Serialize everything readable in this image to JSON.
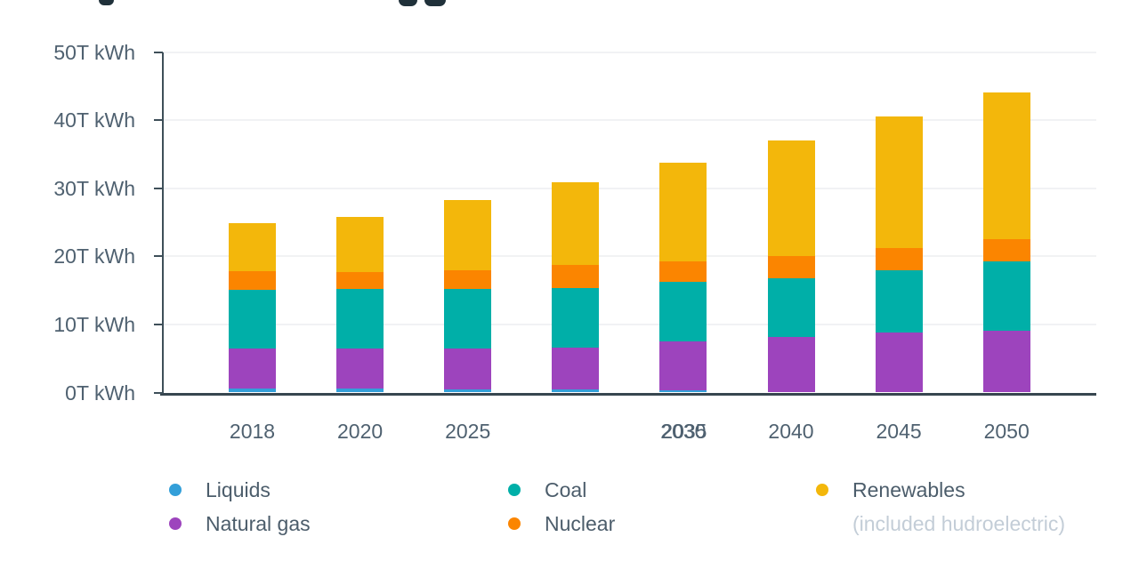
{
  "chart_data": {
    "type": "bar",
    "stacked": true,
    "unit": "T kWh",
    "categories": [
      "2018",
      "2020",
      "2025",
      "2030",
      "2035",
      "2040",
      "2045",
      "2050"
    ],
    "x_tick_labels": [
      {
        "text": "2018"
      },
      {
        "text": "2020"
      },
      {
        "text": "2025"
      },
      {
        "text": ""
      },
      {
        "text": "2030",
        "overlapped_text": "2035"
      },
      {
        "text": "2040"
      },
      {
        "text": "2045"
      },
      {
        "text": "2050"
      }
    ],
    "y_tick_labels": [
      "0T kWh",
      "10T kWh",
      "20T kWh",
      "30T kWh",
      "40T kWh",
      "50T kWh"
    ],
    "ylim": [
      0,
      50
    ],
    "grid": true,
    "legend_position": "bottom",
    "series": [
      {
        "name": "Liquids",
        "color": "#339FD9",
        "values": [
          0.6,
          0.6,
          0.5,
          0.4,
          0.3,
          0,
          0,
          0
        ]
      },
      {
        "name": "Natural gas",
        "color": "#9D44BD",
        "values": [
          5.8,
          5.9,
          6.0,
          6.2,
          7.2,
          8.2,
          8.8,
          9.1
        ]
      },
      {
        "name": "Coal",
        "color": "#00AFA8",
        "values": [
          8.7,
          8.7,
          8.7,
          8.8,
          8.7,
          8.6,
          9.1,
          10.2
        ]
      },
      {
        "name": "Nuclear",
        "color": "#FB8500",
        "values": [
          2.7,
          2.5,
          2.7,
          3.3,
          3.1,
          3.2,
          3.3,
          3.2
        ]
      },
      {
        "name": "Renewables",
        "color": "#F3B70B",
        "values": [
          7.1,
          8.1,
          10.3,
          12.2,
          14.5,
          17.0,
          19.4,
          21.6
        ]
      }
    ],
    "totals": [
      24.9,
      25.8,
      28.2,
      30.9,
      33.8,
      37.0,
      40.6,
      44.1
    ]
  },
  "legend": {
    "columns": [
      {
        "items": [
          {
            "label": "Liquids",
            "color": "#339FD9"
          },
          {
            "label": "Natural gas",
            "color": "#9D44BD"
          }
        ]
      },
      {
        "items": [
          {
            "label": "Coal",
            "color": "#00AFA8"
          },
          {
            "label": "Nuclear",
            "color": "#FB8500"
          }
        ]
      },
      {
        "items": [
          {
            "label": "Renewables",
            "color": "#F3B70B",
            "sublabel": "(included hudroelectric)"
          }
        ]
      }
    ]
  },
  "colors": {
    "axis": "#3E4F59",
    "x_axis_line": "#37464F",
    "tick_label": "#4F6170",
    "gridline": "#F1F2F4",
    "legend_sublabel": "#C3CDD7",
    "clipped_title_ink": "#20313A",
    "background": "#FFFFFF"
  }
}
